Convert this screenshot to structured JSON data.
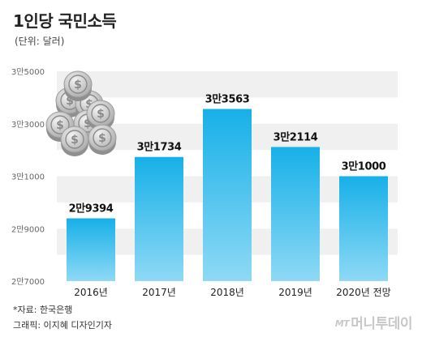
{
  "header": {
    "title": "1인당 국민소득",
    "unit": "(단위: 달러)"
  },
  "chart_data": {
    "type": "bar",
    "title": "1인당 국민소득",
    "ylabel": "",
    "xlabel": "",
    "categories": [
      "2016년",
      "2017년",
      "2018년",
      "2019년",
      "2020년 전망"
    ],
    "values": [
      29394,
      31734,
      33563,
      32114,
      31000
    ],
    "value_labels": [
      "2만9394",
      "3만1734",
      "3만3563",
      "3만2114",
      "3만1000"
    ],
    "ylim": [
      27000,
      35000
    ],
    "yticks": [
      {
        "value": 35000,
        "label": "3만5000"
      },
      {
        "value": 33000,
        "label": "3만3000"
      },
      {
        "value": 31000,
        "label": "3만1000"
      },
      {
        "value": 29000,
        "label": "2만9000"
      },
      {
        "value": 27000,
        "label": "2만7000"
      }
    ],
    "grid": true,
    "colors": {
      "bar_top": "#17b0e8",
      "bar_bottom": "#8ed9f5",
      "grid_band": "#f0f0f0"
    }
  },
  "footer": {
    "source": "*자료: 한국은행",
    "credit": "그래픽: 이지혜 디자인기자",
    "brand_prefix": "MT",
    "brand": "머니투데이"
  },
  "decoration": {
    "icon": "coin-stack-icon"
  }
}
